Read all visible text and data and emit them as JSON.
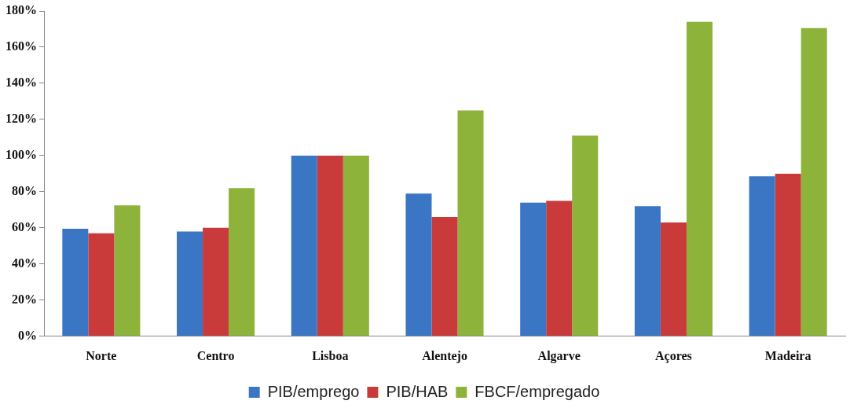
{
  "chart_data": {
    "type": "bar",
    "categories": [
      "Norte",
      "Centro",
      "Lisboa",
      "Alentejo",
      "Algarve",
      "Açores",
      "Madeira"
    ],
    "series": [
      {
        "name": "PIB/emprego",
        "color": "#3b76c4",
        "values": [
          59.5,
          58,
          100,
          79,
          74,
          72,
          88.5
        ]
      },
      {
        "name": "PIB/HAB",
        "color": "#c93b3b",
        "values": [
          57,
          60,
          100,
          66,
          75,
          63,
          90
        ]
      },
      {
        "name": "FBCF/empregado",
        "color": "#8db33a",
        "values": [
          72.5,
          82,
          100,
          125,
          111,
          174,
          170.5
        ]
      }
    ],
    "ylim": [
      0,
      180
    ],
    "yticks": [
      {
        "value": 0,
        "label": "0%"
      },
      {
        "value": 20,
        "label": "20%"
      },
      {
        "value": 40,
        "label": "40%"
      },
      {
        "value": 60,
        "label": "60%"
      },
      {
        "value": 80,
        "label": "80%"
      },
      {
        "value": 100,
        "label": "100%"
      },
      {
        "value": 120,
        "label": "120%"
      },
      {
        "value": 140,
        "label": "140%"
      },
      {
        "value": 160,
        "label": "160%"
      },
      {
        "value": 180,
        "label": "180%"
      }
    ],
    "grid": false,
    "legend": "bottom"
  }
}
